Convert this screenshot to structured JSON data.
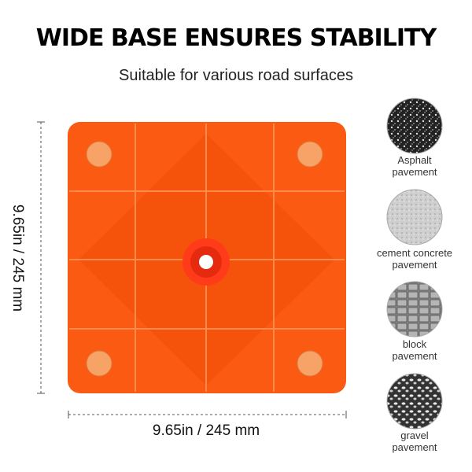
{
  "header": {
    "title": "WIDE BASE ENSURES STABILITY",
    "subtitle": "Suitable for various road surfaces"
  },
  "dimensions": {
    "width": "9.65in / 245 mm",
    "height": "9.65in / 245 mm"
  },
  "surfaces": [
    {
      "lines": [
        "Asphalt",
        "pavement"
      ]
    },
    {
      "lines": [
        "cement concrete",
        "pavement"
      ]
    },
    {
      "lines": [
        "block",
        "pavement"
      ]
    },
    {
      "lines": [
        "gravel",
        "pavement"
      ]
    }
  ]
}
